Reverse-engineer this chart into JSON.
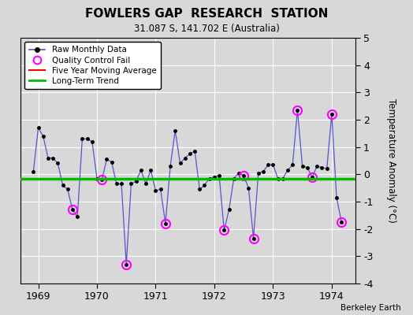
{
  "title": "FOWLERS GAP  RESEARCH  STATION",
  "subtitle": "31.087 S, 141.702 E (Australia)",
  "ylabel": "Temperature Anomaly (°C)",
  "credit": "Berkeley Earth",
  "ylim": [
    -4,
    5
  ],
  "background_color": "#d8d8d8",
  "plot_bg_color": "#d8d8d8",
  "months": [
    1968.917,
    1969.0,
    1969.083,
    1969.167,
    1969.25,
    1969.333,
    1969.417,
    1969.5,
    1969.583,
    1969.667,
    1969.75,
    1969.833,
    1969.917,
    1970.0,
    1970.083,
    1970.167,
    1970.25,
    1970.333,
    1970.417,
    1970.5,
    1970.583,
    1970.667,
    1970.75,
    1970.833,
    1970.917,
    1971.0,
    1971.083,
    1971.167,
    1971.25,
    1971.333,
    1971.417,
    1971.5,
    1971.583,
    1971.667,
    1971.75,
    1971.833,
    1971.917,
    1972.0,
    1972.083,
    1972.167,
    1972.25,
    1972.333,
    1972.417,
    1972.5,
    1972.583,
    1972.667,
    1972.75,
    1972.833,
    1972.917,
    1973.0,
    1973.083,
    1973.167,
    1973.25,
    1973.333,
    1973.417,
    1973.5,
    1973.583,
    1973.667,
    1973.75,
    1973.833,
    1973.917,
    1974.0,
    1974.083,
    1974.167
  ],
  "values": [
    0.1,
    1.7,
    1.4,
    0.6,
    0.6,
    0.4,
    -0.4,
    -0.55,
    -1.3,
    -1.55,
    1.3,
    1.3,
    1.2,
    -0.15,
    -0.2,
    0.55,
    0.45,
    -0.35,
    -0.35,
    -3.3,
    -0.35,
    -0.25,
    0.15,
    -0.35,
    0.15,
    -0.6,
    -0.55,
    -1.8,
    0.3,
    1.6,
    0.4,
    0.6,
    0.75,
    0.85,
    -0.55,
    -0.4,
    -0.15,
    -0.1,
    -0.05,
    -2.05,
    -1.3,
    -0.15,
    0.05,
    -0.05,
    -0.5,
    -2.35,
    0.05,
    0.1,
    0.35,
    0.35,
    -0.15,
    -0.15,
    0.15,
    0.35,
    2.35,
    0.3,
    0.25,
    -0.1,
    0.3,
    0.25,
    0.2,
    2.2,
    -0.85,
    -1.75
  ],
  "qc_fail_indices": [
    8,
    19,
    14,
    27,
    39,
    43,
    45,
    54,
    57,
    61,
    63
  ],
  "long_term_trend_y": -0.15,
  "line_color": "#5555cc",
  "dot_color": "#000000",
  "qc_color": "#ff00ff",
  "trend_color": "#00bb00",
  "mavg_color": "#ff0000",
  "legend_bg": "#ffffff",
  "xticks": [
    1969,
    1970,
    1971,
    1972,
    1973,
    1974
  ],
  "xlim": [
    1968.7,
    1974.4
  ]
}
